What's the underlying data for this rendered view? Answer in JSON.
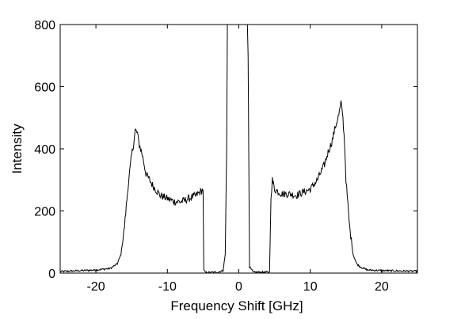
{
  "chart_data": {
    "type": "line",
    "title": "",
    "xlabel": "Frequency Shift [GHz]",
    "ylabel": "Intensity",
    "xlim": [
      -25,
      25
    ],
    "ylim": [
      0,
      800
    ],
    "x_ticks": [
      -20,
      -10,
      0,
      10,
      20
    ],
    "y_ticks": [
      0,
      200,
      400,
      600,
      800
    ],
    "x_tick_labels": [
      "-20",
      "-10",
      "0",
      "10",
      "20"
    ],
    "y_tick_labels": [
      "0",
      "200",
      "400",
      "600",
      "800"
    ],
    "grid": false,
    "legend": "none",
    "series": [
      {
        "color": "#000000",
        "x": [
          -25,
          -20,
          -18,
          -17,
          -16.5,
          -16,
          -15.5,
          -15,
          -14.7,
          -14.5,
          -14.2,
          -14,
          -13.5,
          -13,
          -12,
          -11,
          -10,
          -9,
          -8,
          -7,
          -6,
          -5.2,
          -5,
          -4.9,
          -4.7,
          -3,
          -2.2,
          -1.9,
          -1.7,
          -1.6,
          -1.5,
          1.2,
          1.3,
          1.5,
          2,
          4.3,
          4.5,
          4.7,
          5,
          6,
          7,
          8,
          9,
          10,
          11,
          12,
          12.5,
          13,
          13.5,
          14,
          14.3,
          14.5,
          14.8,
          15,
          15.5,
          16,
          16.5,
          17,
          18,
          20,
          25
        ],
        "y": [
          5,
          10,
          15,
          30,
          60,
          150,
          280,
          380,
          420,
          460,
          450,
          420,
          380,
          320,
          280,
          250,
          240,
          230,
          230,
          240,
          250,
          265,
          270,
          10,
          2,
          3,
          8,
          60,
          400,
          800,
          800,
          800,
          700,
          20,
          3,
          3,
          250,
          300,
          270,
          255,
          255,
          250,
          260,
          270,
          300,
          350,
          390,
          420,
          470,
          510,
          545,
          520,
          420,
          300,
          150,
          60,
          30,
          20,
          10,
          8,
          6
        ]
      }
    ]
  }
}
